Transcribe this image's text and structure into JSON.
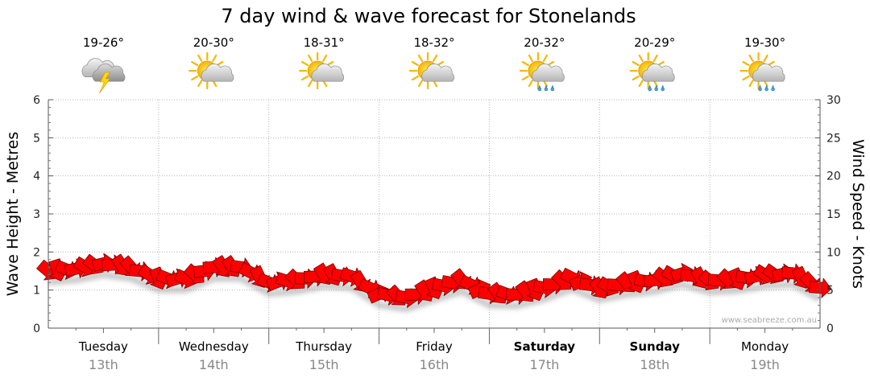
{
  "chart_data": {
    "type": "line",
    "title": "7 day wind & wave forecast for Stonelands",
    "ylabel_left": "Wave Height - Metres",
    "ylabel_right": "Wind Speed - Knots",
    "ylim_left": [
      0,
      6
    ],
    "ylim_right": [
      0,
      30
    ],
    "yticks_left": [
      "0",
      "1",
      "2",
      "3",
      "4",
      "5",
      "6"
    ],
    "yticks_right": [
      "0",
      "5",
      "10",
      "15",
      "20",
      "25",
      "30"
    ],
    "grid": true,
    "credit": "www.seabreeze.com.au",
    "days": [
      {
        "name": "Tuesday",
        "date": "13th",
        "temp": "19-26°",
        "icon": "thunderstorm-icon",
        "bold": false
      },
      {
        "name": "Wednesday",
        "date": "14th",
        "temp": "20-30°",
        "icon": "partly-cloudy-icon",
        "bold": false
      },
      {
        "name": "Thursday",
        "date": "15th",
        "temp": "18-31°",
        "icon": "partly-cloudy-icon",
        "bold": false
      },
      {
        "name": "Friday",
        "date": "16th",
        "temp": "18-32°",
        "icon": "partly-cloudy-icon",
        "bold": false
      },
      {
        "name": "Saturday",
        "date": "17th",
        "temp": "20-32°",
        "icon": "sun-showers-icon",
        "bold": true
      },
      {
        "name": "Sunday",
        "date": "18th",
        "temp": "20-29°",
        "icon": "sun-showers-icon",
        "bold": true
      },
      {
        "name": "Monday",
        "date": "19th",
        "temp": "19-30°",
        "icon": "sun-showers-icon",
        "bold": false
      }
    ],
    "series": [
      {
        "name": "Wind Speed - Knots",
        "unit": "knots",
        "color": "#ff0000",
        "x_days": [
          0,
          0.25,
          0.5,
          0.75,
          1,
          1.25,
          1.5,
          1.75,
          2,
          2.25,
          2.5,
          2.75,
          3,
          3.25,
          3.5,
          3.75,
          4,
          4.25,
          4.5,
          4.75,
          5,
          5.25,
          5.5,
          5.75,
          6,
          6.25,
          6.5,
          6.75,
          7
        ],
        "values": [
          7.5,
          7.8,
          8.5,
          8,
          6.5,
          6.5,
          8,
          8,
          6,
          6.3,
          7,
          6.8,
          4.5,
          4,
          5.2,
          6.3,
          4.5,
          4.4,
          5.3,
          6.6,
          5.2,
          5.9,
          6.3,
          7.2,
          6.2,
          6.4,
          7,
          7.2,
          5.3
        ]
      }
    ]
  }
}
